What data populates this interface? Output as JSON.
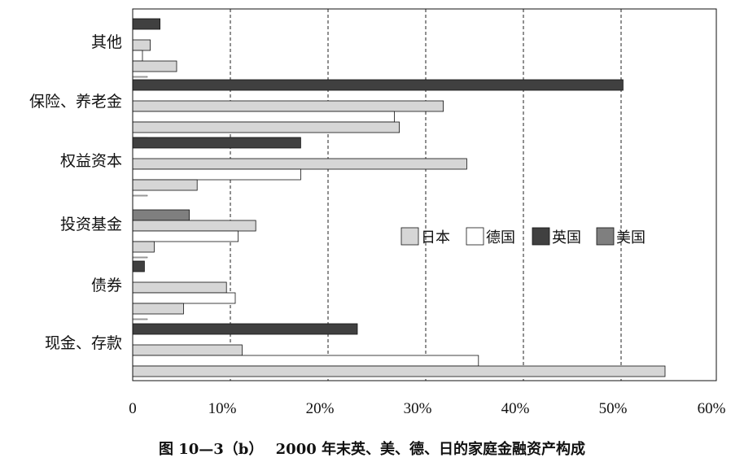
{
  "chart_data": {
    "type": "bar",
    "orientation": "horizontal",
    "categories": [
      "其他",
      "保险、养老金",
      "权益资本",
      "投资基金",
      "债券",
      "现金、存款"
    ],
    "series": [
      {
        "name": "英国",
        "color": "#404040",
        "values": [
          2.8,
          50.2,
          17.2,
          0,
          1.2,
          23.0
        ]
      },
      {
        "name": "美国",
        "color": "#7f7f7f",
        "values": [
          0,
          0,
          0,
          5.8,
          0,
          0
        ]
      },
      {
        "name": "日本",
        "color": "#d6d6d6",
        "values": [
          1.8,
          31.8,
          34.2,
          12.6,
          9.6,
          11.2
        ]
      },
      {
        "name": "德国",
        "color": "#ffffff",
        "values": [
          1.0,
          26.8,
          17.2,
          10.8,
          10.5,
          35.4
        ]
      },
      {
        "name": "日本",
        "color": "#d6d6d6",
        "values": [
          4.5,
          27.3,
          6.6,
          2.2,
          5.2,
          54.5
        ]
      },
      {
        "name": "",
        "color": "#ffffff",
        "values": [
          1.5,
          1.5,
          1.5,
          1.5,
          1.5,
          0
        ]
      }
    ],
    "legend": [
      {
        "label": "日本",
        "color": "#d6d6d6"
      },
      {
        "label": "德国",
        "color": "#ffffff"
      },
      {
        "label": "英国",
        "color": "#404040"
      },
      {
        "label": "美国",
        "color": "#7f7f7f"
      }
    ],
    "legend_position": "center-right",
    "x_ticks": [
      "0",
      "10%",
      "20%",
      "30%",
      "40%",
      "50%",
      "60%"
    ],
    "xlim": [
      0,
      60
    ],
    "grid": "vertical dashed",
    "title": "图 10—3（b）　 2000 年末英、美、德、日的家庭金融资产构成",
    "xlabel": "",
    "ylabel": ""
  }
}
